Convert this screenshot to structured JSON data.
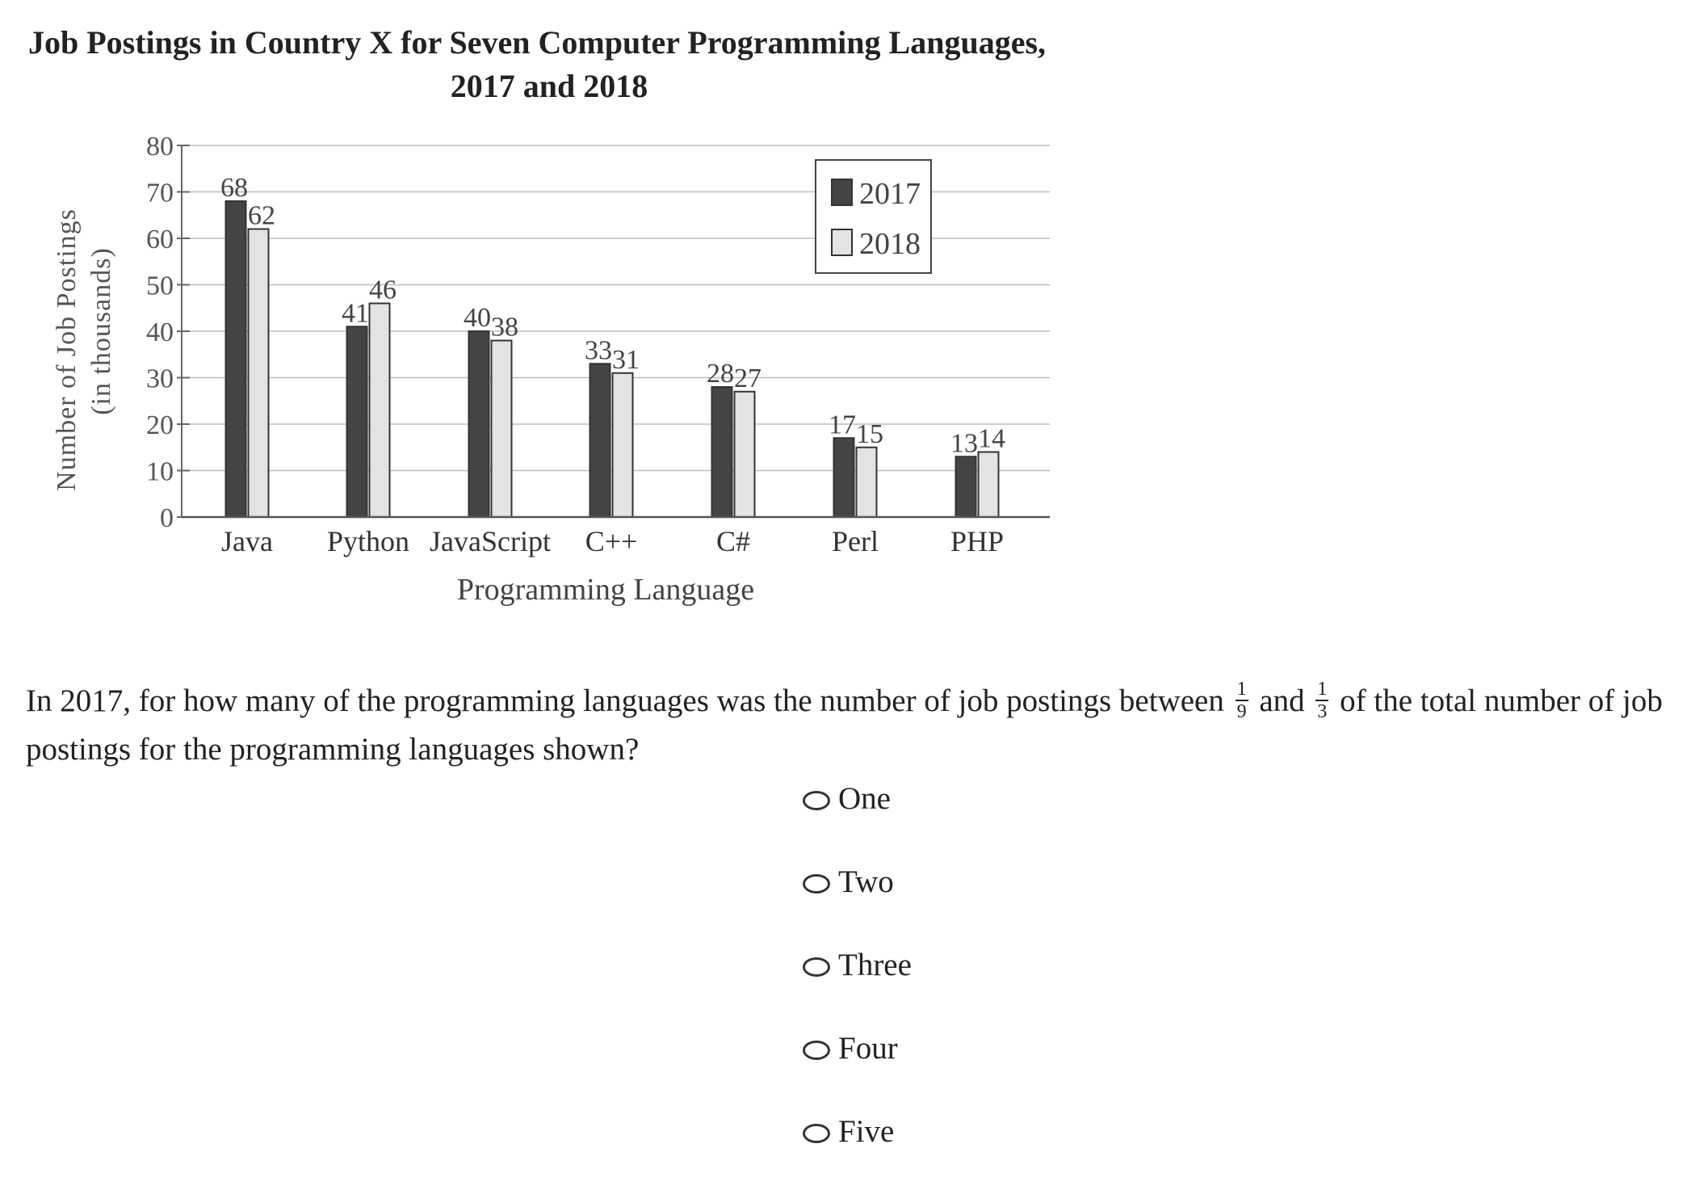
{
  "chart_data": {
    "type": "bar",
    "title": "Job Postings in Country X for Seven Computer Programming Languages,",
    "subtitle": "2017 and 2018",
    "xlabel": "Programming Language",
    "ylabel": "Number of Job Postings",
    "ylabel_sub": "(in thousands)",
    "categories": [
      "Java",
      "Python",
      "JavaScript",
      "C++",
      "C#",
      "Perl",
      "PHP"
    ],
    "series": [
      {
        "name": "2017",
        "values": [
          68,
          41,
          40,
          33,
          28,
          17,
          13
        ],
        "color": "#444444"
      },
      {
        "name": "2018",
        "values": [
          62,
          46,
          38,
          31,
          27,
          15,
          14
        ],
        "color": "#e3e3e3"
      }
    ],
    "ylim": [
      0,
      80
    ],
    "yticks": [
      0,
      10,
      20,
      30,
      40,
      50,
      60,
      70,
      80
    ],
    "grid": true,
    "legend_position": "top-right"
  },
  "question": {
    "part1": "In 2017, for how many of the programming languages was the number of job postings between",
    "frac1": {
      "num": "1",
      "den": "9"
    },
    "and": "and",
    "frac2": {
      "num": "1",
      "den": "3"
    },
    "part2": "of the total number of job postings for the programming languages shown?"
  },
  "options": [
    "One",
    "Two",
    "Three",
    "Four",
    "Five"
  ]
}
